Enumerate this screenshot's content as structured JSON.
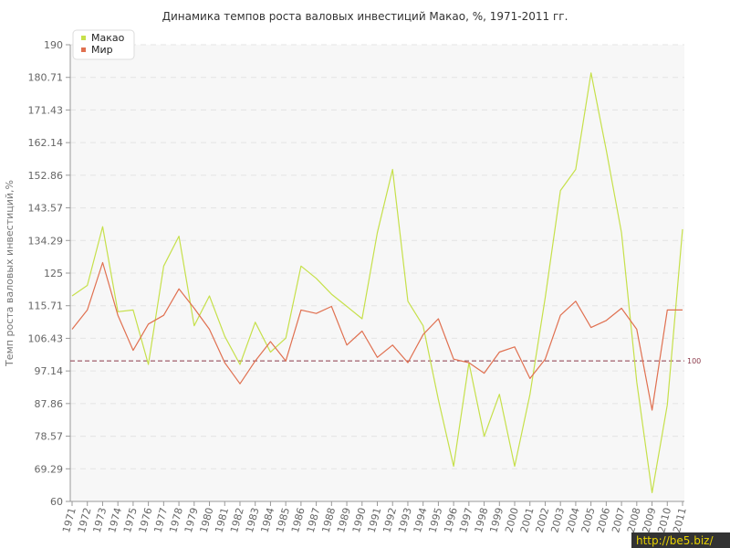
{
  "chart_data": {
    "type": "line",
    "title": "Динамика темпов роста валовых инвестиций Макао, %, 1971-2011 гг.",
    "ylabel": "Темп роста валовых инвестиций,%",
    "xlabel": "",
    "ylim": [
      60,
      190
    ],
    "yticks": [
      "60",
      "69.29",
      "78.57",
      "87.86",
      "97.14",
      "106.43",
      "115.71",
      "125",
      "134.29",
      "143.57",
      "152.86",
      "162.14",
      "171.43",
      "180.71",
      "190"
    ],
    "ytick_values": [
      60,
      69.29,
      78.57,
      87.86,
      97.14,
      106.43,
      115.71,
      125,
      134.29,
      143.57,
      152.86,
      162.14,
      171.43,
      180.71,
      190
    ],
    "x": [
      "1971",
      "1972",
      "1973",
      "1974",
      "1975",
      "1976",
      "1977",
      "1978",
      "1979",
      "1980",
      "1981",
      "1982",
      "1983",
      "1984",
      "1985",
      "1986",
      "1987",
      "1988",
      "1989",
      "1990",
      "1991",
      "1992",
      "1993",
      "1994",
      "1995",
      "1996",
      "1997",
      "1998",
      "1999",
      "2000",
      "2001",
      "2002",
      "2003",
      "2004",
      "2005",
      "2006",
      "2007",
      "2008",
      "2009",
      "2010",
      "2011"
    ],
    "series": [
      {
        "name": "Макао",
        "color": "#c6e04a",
        "values": [
          118.5,
          121.5,
          138.2,
          114,
          114.5,
          99,
          127,
          135.5,
          110,
          118.5,
          107,
          99,
          111,
          102.5,
          106.5,
          127,
          123.5,
          119,
          115.5,
          112,
          136.5,
          154.5,
          117,
          110,
          89,
          70,
          99.5,
          78.5,
          90.5,
          70,
          90.5,
          118,
          148.5,
          154.5,
          182,
          160,
          136.5,
          94,
          62.5,
          87.5,
          137.5
        ]
      },
      {
        "name": "Мир",
        "color": "#e07050",
        "values": [
          109,
          114.5,
          128,
          113,
          103,
          110.5,
          113,
          120.5,
          115,
          109,
          99.5,
          93.5,
          100,
          105.5,
          100,
          114.5,
          113.5,
          115.5,
          104.5,
          108.5,
          101,
          104.5,
          99.5,
          107.5,
          112,
          100.5,
          99.5,
          96.5,
          102.5,
          104,
          95,
          100.5,
          113,
          117,
          109.5,
          111.5,
          115,
          109,
          86,
          114.5,
          114.5
        ]
      }
    ],
    "reference_line": {
      "value": 100,
      "label": "100",
      "color": "#8b3a4a"
    },
    "grid": true,
    "legend_position": "top-left"
  },
  "watermark": "http://be5.biz/"
}
